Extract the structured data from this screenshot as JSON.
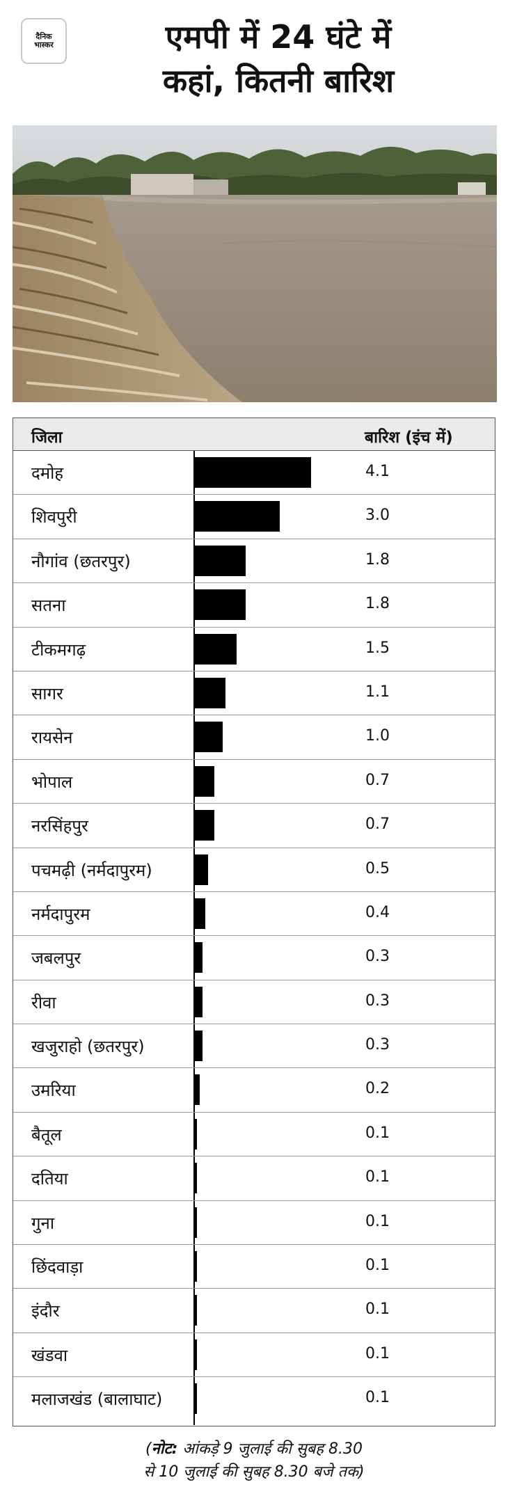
{
  "logo": {
    "line1": "दैनिक",
    "line2": "भास्कर"
  },
  "title": {
    "line1": "एमपी में 24 घंटे में",
    "line2": "कहां, कितनी बारिश"
  },
  "table": {
    "col_district": "जिला",
    "col_rain": "बारिश (इंच में)"
  },
  "chart_data": {
    "type": "bar",
    "orientation": "horizontal",
    "xlim": [
      0,
      4.1
    ],
    "categories": [
      "दमोह",
      "शिवपुरी",
      "नौगांव (छतरपुर)",
      "सतना",
      "टीकमगढ़",
      "सागर",
      "रायसेन",
      "भोपाल",
      "नरसिंहपुर",
      "पचमढ़ी (नर्मदापुरम)",
      "नर्मदापुरम",
      "जबलपुर",
      "रीवा",
      "खजुराहो (छतरपुर)",
      "उमरिया",
      "बैतूल",
      "दतिया",
      "गुना",
      "छिंदवाड़ा",
      "इंदौर",
      "खंडवा",
      "मलाजखंड (बालाघाट)"
    ],
    "values": [
      4.1,
      3.0,
      1.8,
      1.8,
      1.5,
      1.1,
      1.0,
      0.7,
      0.7,
      0.5,
      0.4,
      0.3,
      0.3,
      0.3,
      0.2,
      0.1,
      0.1,
      0.1,
      0.1,
      0.1,
      0.1,
      0.1
    ],
    "labels": [
      "4.1",
      "3.0",
      "1.8",
      "1.8",
      "1.5",
      "1.1",
      "1.0",
      "0.7",
      "0.7",
      "0.5",
      "0.4",
      "0.3",
      "0.3",
      "0.3",
      "0.2",
      "0.1",
      "0.1",
      "0.1",
      "0.1",
      "0.1",
      "0.1",
      "0.1"
    ],
    "bar_color": "#000000"
  },
  "note": {
    "open": "(",
    "bold": "नोट:",
    "line1": " आंकड़े 9 जुलाई की सुबह 8.30",
    "line2": "से 10 जुलाई की सुबह 8.30 बजे तक)"
  }
}
